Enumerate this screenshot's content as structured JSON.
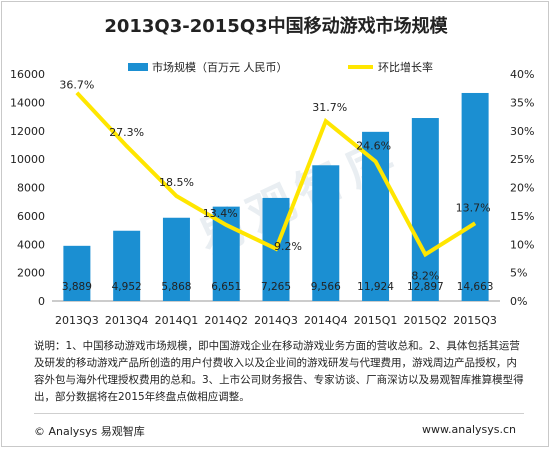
{
  "title": "2013Q3-2015Q3中国移动游戏市场规模",
  "notes": "说明：1、中国移动游戏市场规模，即中国游戏企业在移动游戏业务方面的营收总和。2、具体包括其运营及研发的移动游戏产品所创造的用户付费收入以及企业间的游戏研发与代理费用，游戏周边产品授权，内容外包与海外代理授权费用的总和。3、上市公司财务报告、专家访谈、厂商深访以及易观智库推算模型得出，部分数据将在2015年终盘点做相应调整。",
  "footer": {
    "copyright": "© Analysys 易观智库",
    "website": "www.analysys.cn"
  },
  "watermark": "易观智库",
  "chart_data": {
    "type": "bar",
    "title": "2013Q3-2015Q3中国移动游戏市场规模",
    "categories": [
      "2013Q3",
      "2013Q4",
      "2014Q1",
      "2014Q2",
      "2014Q3",
      "2014Q4",
      "2015Q1",
      "2015Q2",
      "2015Q3"
    ],
    "series": [
      {
        "name": "市场规模（百万元 人民币）",
        "type": "bar",
        "axis": "left",
        "color": "#1b8fd2",
        "values": [
          3889,
          4952,
          5868,
          6651,
          7265,
          9566,
          11924,
          12897,
          14663
        ],
        "labels": [
          "3,889",
          "4,952",
          "5,868",
          "6,651",
          "7,265",
          "9,566",
          "11,924",
          "12,897",
          "14,663"
        ]
      },
      {
        "name": "环比增长率",
        "type": "line",
        "axis": "right",
        "color": "#ffe600",
        "values": [
          36.7,
          27.3,
          18.5,
          13.4,
          9.2,
          31.7,
          24.6,
          8.2,
          13.7
        ],
        "labels": [
          "36.7%",
          "27.3%",
          "18.5%",
          "13.4%",
          "9.2%",
          "31.7%",
          "24.6%",
          "8.2%",
          "13.7%"
        ]
      }
    ],
    "y_left": {
      "min": 0,
      "max": 16000,
      "ticks": [
        "0",
        "2000",
        "4000",
        "6000",
        "8000",
        "10000",
        "12000",
        "14000",
        "16000"
      ]
    },
    "y_right": {
      "min": 0,
      "max": 40,
      "ticks": [
        "0%",
        "5%",
        "10%",
        "15%",
        "20%",
        "25%",
        "30%",
        "35%",
        "40%"
      ]
    },
    "grid": false,
    "legend_position": "top"
  }
}
